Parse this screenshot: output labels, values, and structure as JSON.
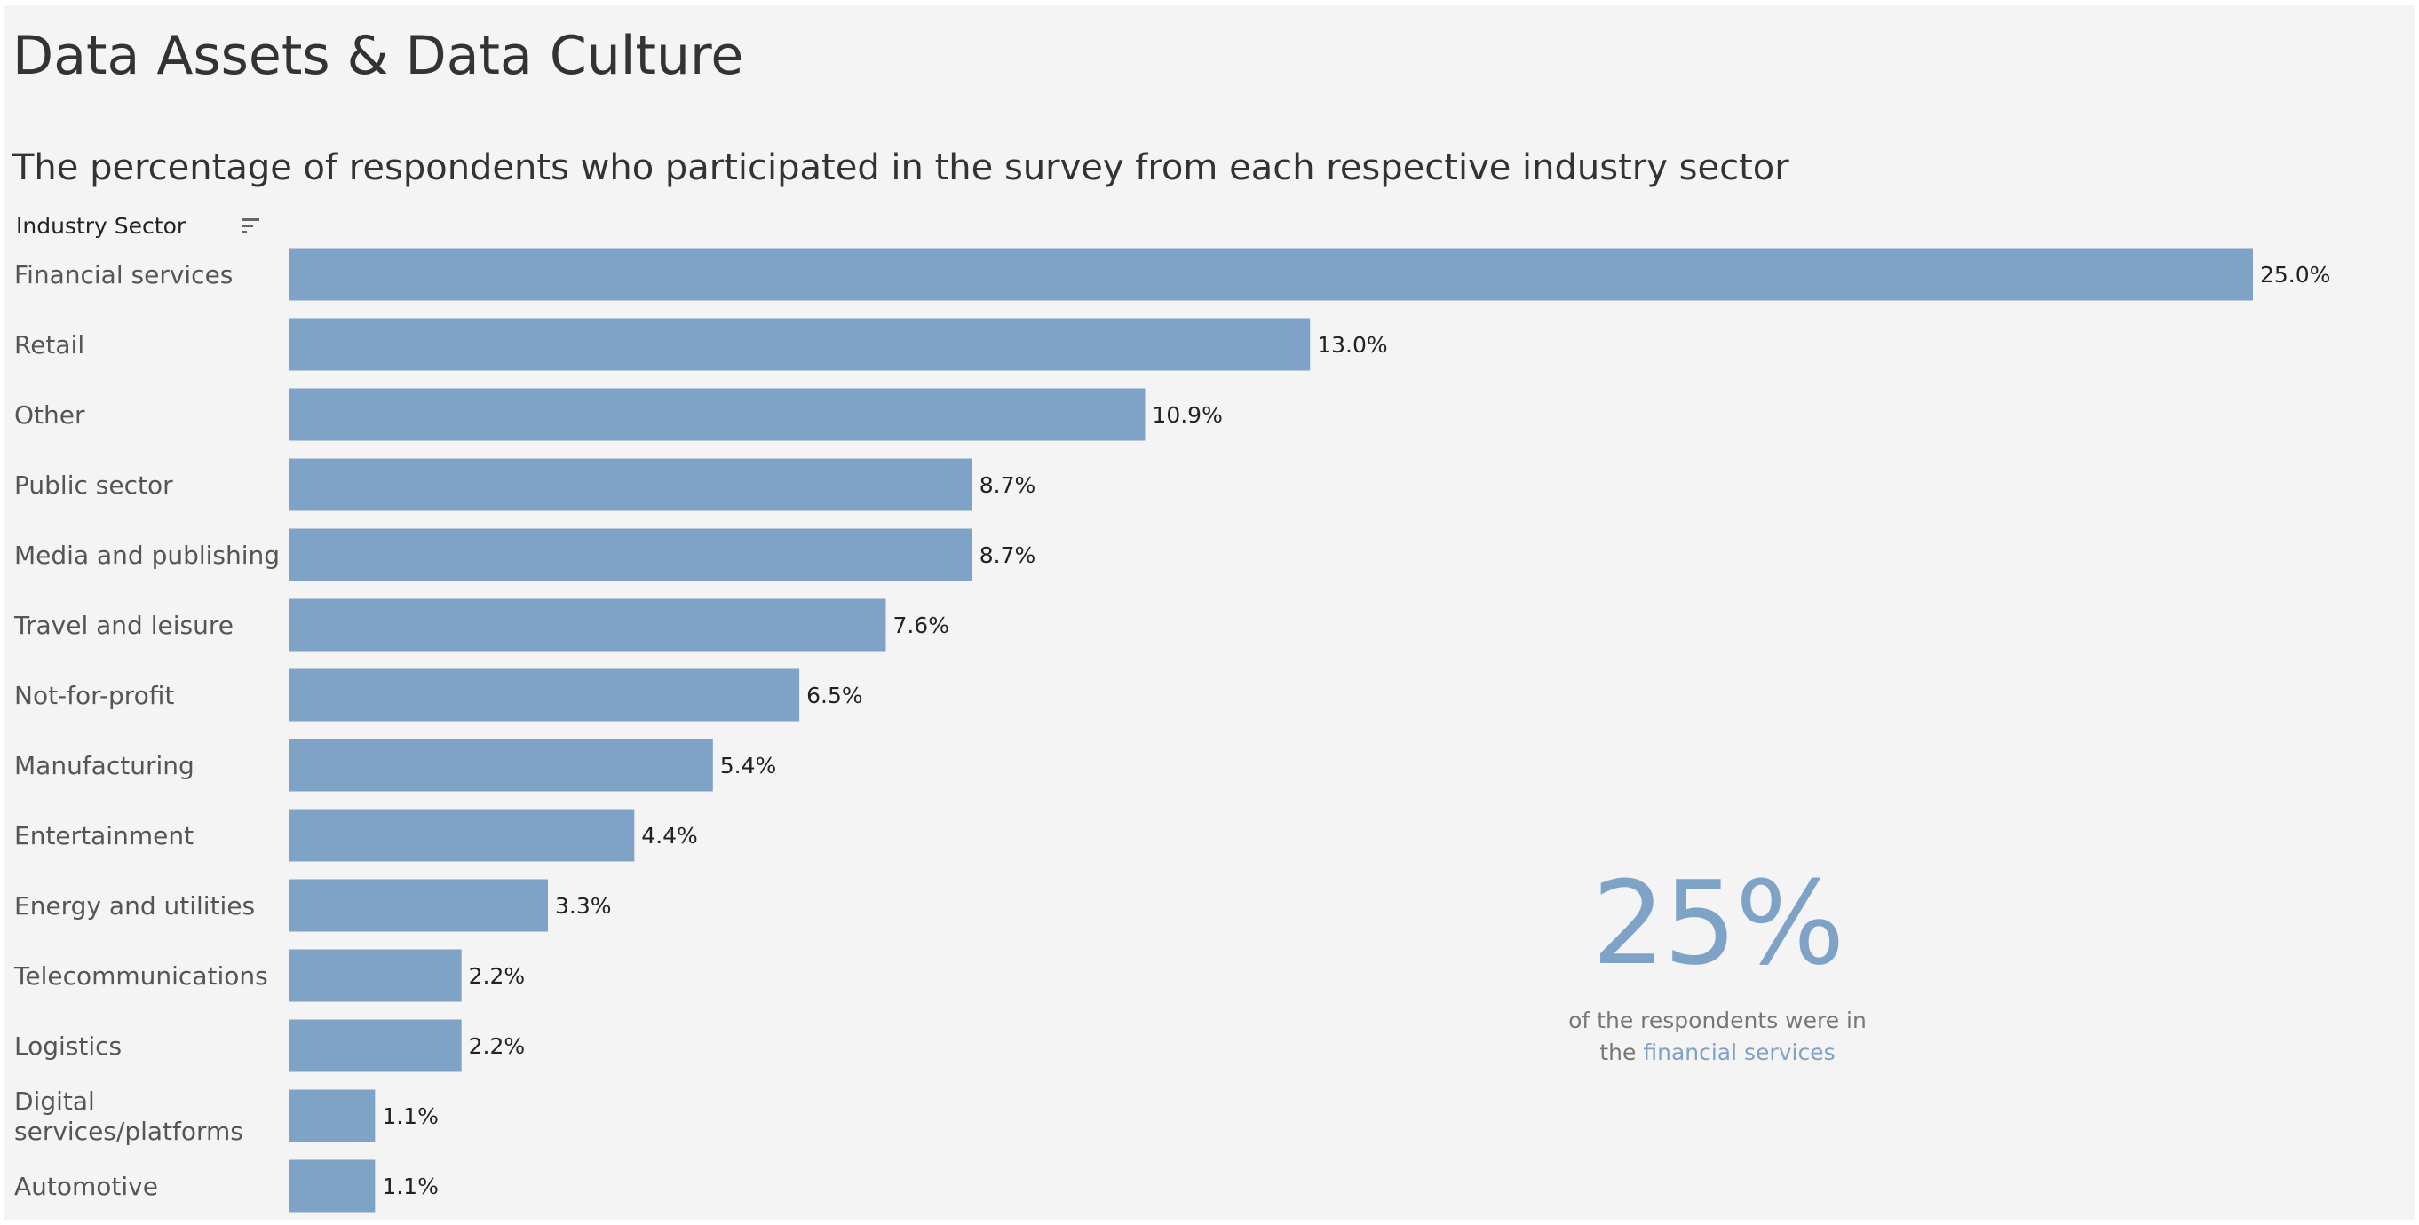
{
  "title": "Data Assets & Data Culture",
  "subtitle": "The percentage of respondents who participated in the survey from each respective industry sector",
  "field_header": "Industry Sector",
  "icons": {
    "sort": "sort-descending-icon"
  },
  "colors": {
    "bar": "#7fa2c7",
    "background": "#f4f4f4"
  },
  "chart_data": {
    "type": "bar",
    "orientation": "horizontal",
    "categories": [
      "Financial services",
      "Retail",
      "Other",
      "Public sector",
      "Media and publishing",
      "Travel and leisure",
      "Not-for-profit",
      "Manufacturing",
      "Entertainment",
      "Energy and utilities",
      "Telecommunications",
      "Logistics",
      "Digital services/platforms",
      "Automotive"
    ],
    "values": [
      25.0,
      13.0,
      10.9,
      8.7,
      8.7,
      7.6,
      6.5,
      5.4,
      4.4,
      3.3,
      2.2,
      2.2,
      1.1,
      1.1
    ],
    "value_labels": [
      "25.0%",
      "13.0%",
      "10.9%",
      "8.7%",
      "8.7%",
      "7.6%",
      "6.5%",
      "5.4%",
      "4.4%",
      "3.3%",
      "2.2%",
      "2.2%",
      "1.1%",
      "1.1%"
    ],
    "unit": "%",
    "xlim": [
      0,
      25
    ],
    "grid": false,
    "sorted": "descending"
  },
  "kpi": {
    "value": "25%",
    "caption_prefix": "of the respondents were in",
    "caption_mid": "the",
    "caption_highlight": "financial services"
  }
}
